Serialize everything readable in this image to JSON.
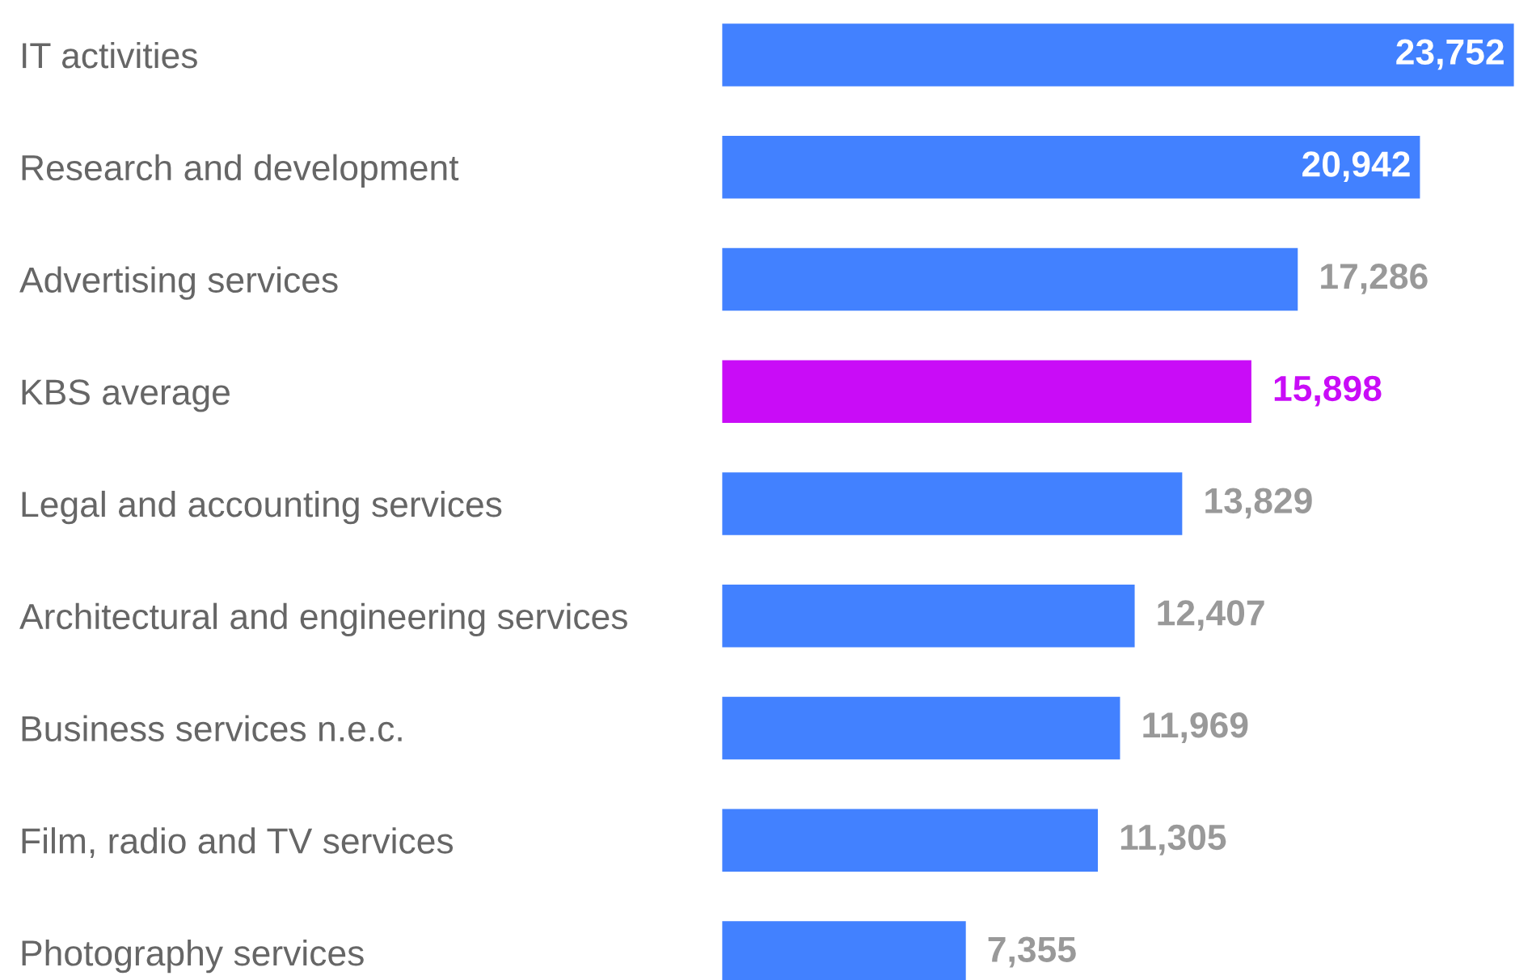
{
  "chart_data": {
    "type": "bar",
    "orientation": "horizontal",
    "categories": [
      "IT activities",
      "Research and development",
      "Advertising services",
      "KBS average",
      "Legal and accounting services",
      "Architectural and engineering services",
      "Business services n.e.c.",
      "Film, radio and TV services",
      "Photography services"
    ],
    "values": [
      23752,
      20942,
      17286,
      15898,
      13829,
      12407,
      11969,
      11305,
      7355
    ],
    "colors": [
      "#4281ff",
      "#4281ff",
      "#4281ff",
      "#c90cf7",
      "#4281ff",
      "#4281ff",
      "#4281ff",
      "#4281ff",
      "#4281ff"
    ],
    "value_labels": [
      "23,752",
      "20,942",
      "17,286",
      "15,898",
      "13,829",
      "12,407",
      "11,969",
      "11,305",
      "7,355"
    ],
    "grid": false,
    "legend": false
  }
}
